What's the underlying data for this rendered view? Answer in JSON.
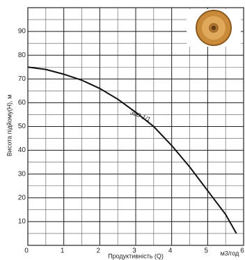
{
  "chart_data": {
    "type": "line",
    "x_label": "Продуктивність (Q)",
    "y_label": "Висота підйому(H), м",
    "x_unit": "м3/год",
    "x": [
      0,
      0.5,
      1,
      1.5,
      2,
      2.5,
      3,
      3.5,
      4,
      4.5,
      5,
      5.5,
      5.8
    ],
    "series": [
      {
        "name": "308-1/1",
        "color": "#111111",
        "values": [
          75,
          74,
          72,
          69.5,
          66,
          61.5,
          56,
          50,
          42,
          33,
          23,
          13,
          5
        ]
      }
    ],
    "xlim": [
      0,
      6
    ],
    "xticks": [
      0,
      1,
      2,
      3,
      4,
      5,
      6
    ],
    "ylim": [
      0,
      100
    ],
    "yticks": [
      10,
      20,
      30,
      40,
      50,
      60,
      70,
      80,
      90
    ],
    "grid": true
  }
}
